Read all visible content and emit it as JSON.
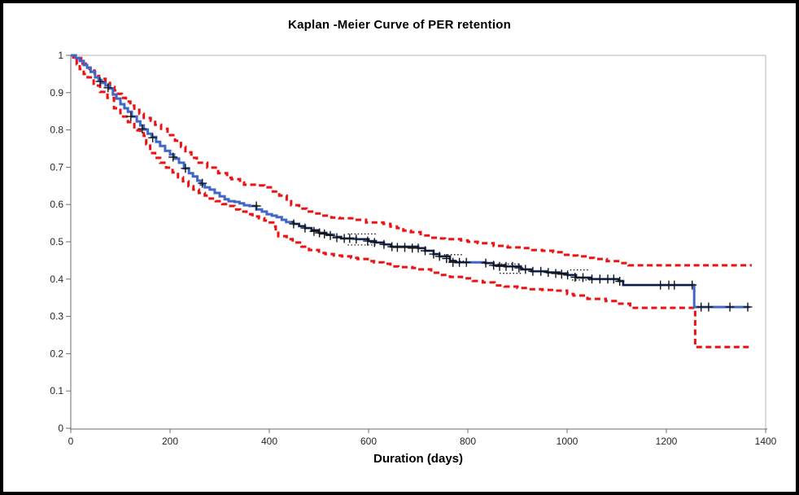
{
  "window": {
    "background": "#ffffff",
    "frame_color": "#000000"
  },
  "axis": {
    "line_color": "#6e6e6e",
    "border_color": "#b4b4b4",
    "tick_label_color": "#262626"
  },
  "chart_data": {
    "type": "line",
    "title": "Kaplan -Meier Curve of PER retention",
    "xlabel": "Duration (days)",
    "ylabel": "",
    "xlim": [
      0,
      1400
    ],
    "ylim": [
      0,
      1
    ],
    "grid": "off",
    "legend": "none",
    "x_ticks": [
      0,
      200,
      400,
      600,
      800,
      1000,
      1200,
      1400
    ],
    "y_ticks": [
      1,
      0.9,
      0.8,
      0.7,
      0.6,
      0.5,
      0.4,
      0.3,
      0.2,
      0.1,
      0
    ],
    "y_tick_labels": [
      "1",
      "0.9",
      "0.8",
      "0.7",
      "0.6",
      "0.5",
      "0.4",
      "0.3",
      "0.2",
      "0.1",
      "0"
    ],
    "series": [
      {
        "name": "KM survival estimate",
        "render": "step",
        "color": "#4066C7",
        "width": 3,
        "dash": "none",
        "end_day": 1368,
        "points": [
          [
            0,
            1.0
          ],
          [
            10,
            0.993
          ],
          [
            18,
            0.985
          ],
          [
            26,
            0.974
          ],
          [
            33,
            0.967
          ],
          [
            40,
            0.956
          ],
          [
            49,
            0.941
          ],
          [
            56,
            0.934
          ],
          [
            62,
            0.926
          ],
          [
            70,
            0.919
          ],
          [
            78,
            0.911
          ],
          [
            85,
            0.895
          ],
          [
            92,
            0.884
          ],
          [
            100,
            0.869
          ],
          [
            108,
            0.858
          ],
          [
            115,
            0.849
          ],
          [
            123,
            0.836
          ],
          [
            133,
            0.823
          ],
          [
            140,
            0.812
          ],
          [
            147,
            0.801
          ],
          [
            155,
            0.79
          ],
          [
            163,
            0.781
          ],
          [
            172,
            0.768
          ],
          [
            180,
            0.757
          ],
          [
            190,
            0.744
          ],
          [
            200,
            0.734
          ],
          [
            208,
            0.723
          ],
          [
            218,
            0.712
          ],
          [
            228,
            0.697
          ],
          [
            238,
            0.684
          ],
          [
            246,
            0.675
          ],
          [
            255,
            0.664
          ],
          [
            262,
            0.653
          ],
          [
            270,
            0.646
          ],
          [
            280,
            0.64
          ],
          [
            290,
            0.631
          ],
          [
            300,
            0.622
          ],
          [
            310,
            0.614
          ],
          [
            318,
            0.609
          ],
          [
            330,
            0.607
          ],
          [
            340,
            0.603
          ],
          [
            349,
            0.598
          ],
          [
            360,
            0.596
          ],
          [
            374,
            0.587
          ],
          [
            385,
            0.581
          ],
          [
            395,
            0.574
          ],
          [
            405,
            0.57
          ],
          [
            415,
            0.566
          ],
          [
            425,
            0.559
          ],
          [
            434,
            0.553
          ],
          [
            449,
            0.548
          ],
          [
            460,
            0.542
          ],
          [
            472,
            0.537
          ],
          [
            485,
            0.531
          ],
          [
            500,
            0.524
          ],
          [
            515,
            0.519
          ],
          [
            530,
            0.513
          ],
          [
            545,
            0.509
          ],
          [
            575,
            0.507
          ],
          [
            600,
            0.502
          ],
          [
            615,
            0.498
          ],
          [
            631,
            0.493
          ],
          [
            645,
            0.487
          ],
          [
            700,
            0.483
          ],
          [
            714,
            0.476
          ],
          [
            731,
            0.467
          ],
          [
            743,
            0.461
          ],
          [
            764,
            0.449
          ],
          [
            775,
            0.445
          ],
          [
            836,
            0.443
          ],
          [
            852,
            0.437
          ],
          [
            874,
            0.434
          ],
          [
            907,
            0.426
          ],
          [
            928,
            0.421
          ],
          [
            960,
            0.418
          ],
          [
            985,
            0.415
          ],
          [
            1001,
            0.411
          ],
          [
            1018,
            0.404
          ],
          [
            1049,
            0.4
          ],
          [
            1104,
            0.395
          ],
          [
            1113,
            0.384
          ],
          [
            1256,
            0.325
          ]
        ]
      },
      {
        "name": "Upper 95% confidence limit",
        "render": "step",
        "color": "#EE1111",
        "width": 3,
        "dash": "7 4.5",
        "end_day": 1372,
        "points": [
          [
            0,
            1.0
          ],
          [
            15,
            0.993
          ],
          [
            21,
            0.978
          ],
          [
            30,
            0.967
          ],
          [
            38,
            0.959
          ],
          [
            48,
            0.945
          ],
          [
            57,
            0.937
          ],
          [
            70,
            0.926
          ],
          [
            79,
            0.915
          ],
          [
            88,
            0.906
          ],
          [
            95,
            0.897
          ],
          [
            103,
            0.886
          ],
          [
            111,
            0.876
          ],
          [
            120,
            0.865
          ],
          [
            128,
            0.854
          ],
          [
            138,
            0.843
          ],
          [
            147,
            0.832
          ],
          [
            161,
            0.825
          ],
          [
            170,
            0.814
          ],
          [
            182,
            0.803
          ],
          [
            195,
            0.786
          ],
          [
            210,
            0.771
          ],
          [
            222,
            0.755
          ],
          [
            231,
            0.74
          ],
          [
            243,
            0.725
          ],
          [
            254,
            0.712
          ],
          [
            275,
            0.699
          ],
          [
            297,
            0.684
          ],
          [
            315,
            0.672
          ],
          [
            324,
            0.668
          ],
          [
            341,
            0.659
          ],
          [
            349,
            0.653
          ],
          [
            374,
            0.651
          ],
          [
            390,
            0.646
          ],
          [
            407,
            0.635
          ],
          [
            420,
            0.624
          ],
          [
            435,
            0.609
          ],
          [
            444,
            0.598
          ],
          [
            460,
            0.589
          ],
          [
            475,
            0.581
          ],
          [
            490,
            0.576
          ],
          [
            505,
            0.57
          ],
          [
            525,
            0.565
          ],
          [
            541,
            0.563
          ],
          [
            573,
            0.559
          ],
          [
            595,
            0.552
          ],
          [
            630,
            0.548
          ],
          [
            644,
            0.541
          ],
          [
            657,
            0.537
          ],
          [
            670,
            0.53
          ],
          [
            685,
            0.526
          ],
          [
            705,
            0.517
          ],
          [
            721,
            0.511
          ],
          [
            740,
            0.509
          ],
          [
            754,
            0.507
          ],
          [
            786,
            0.504
          ],
          [
            800,
            0.5
          ],
          [
            820,
            0.496
          ],
          [
            852,
            0.489
          ],
          [
            880,
            0.485
          ],
          [
            907,
            0.483
          ],
          [
            930,
            0.478
          ],
          [
            950,
            0.476
          ],
          [
            972,
            0.472
          ],
          [
            993,
            0.465
          ],
          [
            1005,
            0.463
          ],
          [
            1021,
            0.461
          ],
          [
            1040,
            0.457
          ],
          [
            1054,
            0.454
          ],
          [
            1080,
            0.448
          ],
          [
            1106,
            0.443
          ],
          [
            1124,
            0.437
          ]
        ]
      },
      {
        "name": "Lower 95% confidence limit",
        "render": "step",
        "color": "#EE1111",
        "width": 3,
        "dash": "7 4.5",
        "end_day": 1366,
        "points": [
          [
            0,
            1.0
          ],
          [
            5,
            0.991
          ],
          [
            12,
            0.976
          ],
          [
            18,
            0.963
          ],
          [
            26,
            0.95
          ],
          [
            34,
            0.941
          ],
          [
            46,
            0.919
          ],
          [
            59,
            0.902
          ],
          [
            74,
            0.886
          ],
          [
            87,
            0.858
          ],
          [
            100,
            0.836
          ],
          [
            115,
            0.821
          ],
          [
            128,
            0.799
          ],
          [
            140,
            0.791
          ],
          [
            147,
            0.784
          ],
          [
            152,
            0.762
          ],
          [
            160,
            0.738
          ],
          [
            170,
            0.725
          ],
          [
            180,
            0.712
          ],
          [
            192,
            0.699
          ],
          [
            205,
            0.686
          ],
          [
            216,
            0.673
          ],
          [
            226,
            0.662
          ],
          [
            237,
            0.649
          ],
          [
            247,
            0.64
          ],
          [
            258,
            0.631
          ],
          [
            270,
            0.624
          ],
          [
            280,
            0.616
          ],
          [
            292,
            0.609
          ],
          [
            305,
            0.601
          ],
          [
            316,
            0.596
          ],
          [
            330,
            0.587
          ],
          [
            341,
            0.581
          ],
          [
            354,
            0.574
          ],
          [
            366,
            0.568
          ],
          [
            379,
            0.563
          ],
          [
            390,
            0.557
          ],
          [
            401,
            0.552
          ],
          [
            408,
            0.541
          ],
          [
            413,
            0.528
          ],
          [
            418,
            0.515
          ],
          [
            435,
            0.507
          ],
          [
            447,
            0.498
          ],
          [
            465,
            0.487
          ],
          [
            480,
            0.478
          ],
          [
            500,
            0.47
          ],
          [
            513,
            0.467
          ],
          [
            530,
            0.463
          ],
          [
            546,
            0.461
          ],
          [
            565,
            0.457
          ],
          [
            578,
            0.454
          ],
          [
            598,
            0.448
          ],
          [
            611,
            0.445
          ],
          [
            630,
            0.441
          ],
          [
            644,
            0.434
          ],
          [
            660,
            0.432
          ],
          [
            688,
            0.43
          ],
          [
            700,
            0.426
          ],
          [
            726,
            0.417
          ],
          [
            745,
            0.411
          ],
          [
            764,
            0.406
          ],
          [
            788,
            0.402
          ],
          [
            810,
            0.395
          ],
          [
            830,
            0.391
          ],
          [
            854,
            0.383
          ],
          [
            874,
            0.38
          ],
          [
            900,
            0.376
          ],
          [
            923,
            0.373
          ],
          [
            950,
            0.371
          ],
          [
            972,
            0.369
          ],
          [
            1000,
            0.36
          ],
          [
            1013,
            0.356
          ],
          [
            1041,
            0.347
          ],
          [
            1078,
            0.341
          ],
          [
            1098,
            0.334
          ],
          [
            1127,
            0.323
          ],
          [
            1258,
            0.218
          ]
        ]
      }
    ],
    "censor_marks": {
      "name": "censored observations",
      "color": "#141414",
      "points": [
        [
          59,
          0.93
        ],
        [
          75,
          0.913
        ],
        [
          121,
          0.836
        ],
        [
          144,
          0.803
        ],
        [
          165,
          0.779
        ],
        [
          206,
          0.727
        ],
        [
          231,
          0.697
        ],
        [
          265,
          0.657
        ],
        [
          374,
          0.596
        ],
        [
          449,
          0.548
        ],
        [
          472,
          0.537
        ],
        [
          490,
          0.528
        ],
        [
          501,
          0.524
        ],
        [
          511,
          0.521
        ],
        [
          523,
          0.517
        ],
        [
          536,
          0.511
        ],
        [
          551,
          0.509
        ],
        [
          562,
          0.509
        ],
        [
          575,
          0.507
        ],
        [
          598,
          0.502
        ],
        [
          612,
          0.498
        ],
        [
          631,
          0.493
        ],
        [
          647,
          0.487
        ],
        [
          658,
          0.485
        ],
        [
          673,
          0.485
        ],
        [
          688,
          0.483
        ],
        [
          700,
          0.483
        ],
        [
          714,
          0.476
        ],
        [
          731,
          0.467
        ],
        [
          743,
          0.461
        ],
        [
          757,
          0.455
        ],
        [
          770,
          0.445
        ],
        [
          783,
          0.445
        ],
        [
          797,
          0.445
        ],
        [
          836,
          0.443
        ],
        [
          852,
          0.437
        ],
        [
          864,
          0.434
        ],
        [
          877,
          0.434
        ],
        [
          890,
          0.434
        ],
        [
          903,
          0.43
        ],
        [
          916,
          0.426
        ],
        [
          931,
          0.421
        ],
        [
          947,
          0.421
        ],
        [
          962,
          0.418
        ],
        [
          977,
          0.415
        ],
        [
          989,
          0.413
        ],
        [
          1001,
          0.411
        ],
        [
          1016,
          0.405
        ],
        [
          1032,
          0.404
        ],
        [
          1050,
          0.4
        ],
        [
          1066,
          0.4
        ],
        [
          1082,
          0.4
        ],
        [
          1094,
          0.4
        ],
        [
          1106,
          0.394
        ],
        [
          1188,
          0.384
        ],
        [
          1205,
          0.384
        ],
        [
          1216,
          0.384
        ],
        [
          1252,
          0.384
        ],
        [
          1270,
          0.325
        ],
        [
          1285,
          0.325
        ],
        [
          1328,
          0.325
        ],
        [
          1364,
          0.325
        ]
      ]
    },
    "overlay": {
      "black_step_color": "#141414",
      "black_step_ranges": [
        [
          445,
          528
        ],
        [
          536,
          570
        ],
        [
          582,
          803
        ],
        [
          830,
          1254
        ]
      ],
      "dotted_segments": [
        [
          558,
          616,
          0.521
        ],
        [
          558,
          618,
          0.4915
        ],
        [
          752,
          790,
          0.4655
        ],
        [
          756,
          792,
          0.448
        ],
        [
          860,
          905,
          0.4405
        ],
        [
          864,
          908,
          0.4155
        ],
        [
          1006,
          1044,
          0.4245
        ],
        [
          1010,
          1048,
          0.3975
        ]
      ]
    }
  }
}
